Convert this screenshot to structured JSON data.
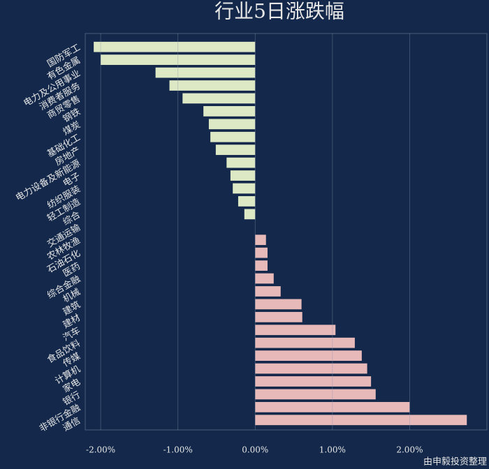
{
  "chart_data": {
    "type": "barh",
    "title": "行业5日涨跌幅",
    "note": "由申毅投资整理",
    "categories": [
      "国防军工",
      "有色金属",
      "电力及公用事业",
      "消费者服务",
      "商贸零售",
      "钢铁",
      "煤炭",
      "基础化工",
      "房地产",
      "电力设备及新能源",
      "电子",
      "纺织服装",
      "轻工制造",
      "综合",
      "交通运输",
      "农林牧渔",
      "石油石化",
      "医药",
      "综合金融",
      "机械",
      "建筑",
      "建材",
      "汽车",
      "食品饮料",
      "传媒",
      "计算机",
      "家电",
      "银行",
      "非银行金融",
      "通信"
    ],
    "values": [
      -2.09,
      -2.0,
      -1.29,
      -1.11,
      -0.94,
      -0.67,
      -0.6,
      -0.58,
      -0.51,
      -0.37,
      -0.32,
      -0.29,
      -0.22,
      -0.14,
      0,
      0.14,
      0.16,
      0.16,
      0.24,
      0.33,
      0.6,
      0.61,
      1.04,
      1.29,
      1.38,
      1.45,
      1.5,
      1.56,
      2.0,
      2.74
    ],
    "color_up": "#e8b9b9",
    "color_down": "#dde8c4",
    "xlim": [
      -2.2,
      3.0
    ],
    "xticks": [
      {
        "value": -2,
        "label": "-2.00%"
      },
      {
        "value": -1,
        "label": "-1.00%"
      },
      {
        "value": 0,
        "label": "0.00%"
      },
      {
        "value": 1,
        "label": "1.00%"
      },
      {
        "value": 2,
        "label": "2.00%"
      }
    ],
    "grid": true
  }
}
